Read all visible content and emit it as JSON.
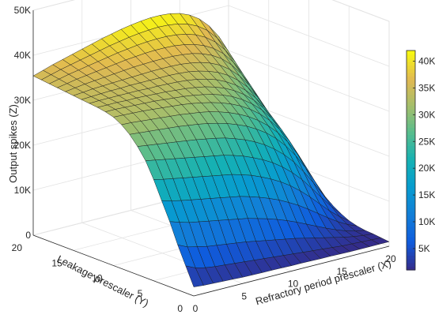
{
  "chart_data": {
    "type": "surface",
    "xlabel": "Refractory period prescaler (X)",
    "ylabel": "Leakage prescaler (Y)",
    "zlabel": "Output spikes (Z)",
    "x_ticks": [
      "0",
      "5",
      "10",
      "15",
      "20"
    ],
    "y_ticks": [
      "0",
      "5",
      "10",
      "15",
      "20"
    ],
    "z_ticks": [
      "0",
      "10K",
      "20K",
      "30K",
      "40K",
      "50K"
    ],
    "colorbar_ticks": [
      "5K",
      "10K",
      "15K",
      "20K",
      "25K",
      "30K",
      "35K",
      "40K"
    ],
    "xlim": [
      0,
      20
    ],
    "ylim": [
      0,
      20
    ],
    "zlim": [
      0,
      50000
    ],
    "clim": [
      1000,
      42000
    ],
    "colormap": "parula",
    "grid_x": [
      0,
      1,
      2,
      3,
      4,
      5,
      6,
      7,
      8,
      9,
      10,
      11,
      12,
      13,
      14,
      15,
      16,
      17,
      18,
      19,
      20
    ],
    "grid_y": [
      0,
      1,
      2,
      3,
      4,
      5,
      6,
      7,
      8,
      9,
      10,
      11,
      12,
      13,
      14,
      15,
      16,
      17,
      18,
      19,
      20
    ],
    "z_rows_by_y": [
      [
        2000,
        1800,
        1700,
        1600,
        1500,
        1400,
        1350,
        1300,
        1300,
        1250,
        1200,
        1200,
        1150,
        1100,
        1100,
        1050,
        1000,
        1000,
        1000,
        1000,
        1000
      ],
      [
        6000,
        5000,
        4500,
        4200,
        4000,
        3800,
        3600,
        3400,
        3200,
        3000,
        2800,
        2600,
        2400,
        2200,
        2000,
        1800,
        1600,
        1500,
        1400,
        1300,
        1200
      ],
      [
        10000,
        9000,
        8500,
        8000,
        7700,
        7400,
        7100,
        6800,
        6400,
        6000,
        5600,
        5200,
        4800,
        4300,
        3800,
        3300,
        2800,
        2300,
        1900,
        1600,
        1400
      ],
      [
        14500,
        13800,
        13200,
        12800,
        12400,
        12000,
        11600,
        11200,
        10800,
        10200,
        9600,
        8900,
        8100,
        7200,
        6200,
        5200,
        4200,
        3300,
        2500,
        1900,
        1500
      ],
      [
        18500,
        17900,
        17400,
        17000,
        16600,
        16200,
        15800,
        15400,
        15000,
        14400,
        13700,
        12900,
        12000,
        10900,
        9700,
        8300,
        6800,
        5300,
        3900,
        2700,
        1800
      ],
      [
        22500,
        22000,
        21600,
        21200,
        20800,
        20400,
        20000,
        19600,
        19200,
        18600,
        17900,
        17000,
        16000,
        14800,
        13400,
        11700,
        9800,
        7700,
        5600,
        3800,
        2300
      ],
      [
        26000,
        25600,
        25200,
        24800,
        24400,
        24000,
        23600,
        23200,
        22800,
        22200,
        21500,
        20600,
        19600,
        18400,
        16900,
        15100,
        13000,
        10500,
        7900,
        5400,
        3200
      ],
      [
        28500,
        28200,
        27900,
        27600,
        27300,
        27000,
        26700,
        26300,
        25900,
        25400,
        24700,
        23900,
        22900,
        21700,
        20200,
        18400,
        16200,
        13500,
        10500,
        7300,
        4300
      ],
      [
        30500,
        30300,
        30100,
        29900,
        29700,
        29500,
        29200,
        28900,
        28500,
        28000,
        27400,
        26600,
        25700,
        24500,
        23100,
        21300,
        19100,
        16400,
        13200,
        9500,
        5700
      ],
      [
        32000,
        31900,
        31700,
        31500,
        31300,
        31100,
        30900,
        30600,
        30300,
        29900,
        29300,
        28600,
        27700,
        26600,
        25200,
        23500,
        21400,
        18800,
        15600,
        11700,
        7300
      ],
      [
        33000,
        32900,
        32800,
        32700,
        32500,
        32300,
        32100,
        31900,
        31600,
        31200,
        30700,
        30100,
        29300,
        28300,
        27000,
        25400,
        23400,
        20900,
        17800,
        13900,
        9100
      ],
      [
        33500,
        33500,
        33400,
        33300,
        33200,
        33100,
        32900,
        32700,
        32500,
        32200,
        31800,
        31300,
        30600,
        29700,
        28500,
        27000,
        25100,
        22700,
        19700,
        15900,
        10900
      ],
      [
        33800,
        33800,
        33800,
        33700,
        33700,
        33600,
        33500,
        33400,
        33200,
        33000,
        32700,
        32300,
        31700,
        30900,
        29800,
        28400,
        26600,
        24300,
        21400,
        17700,
        12600
      ],
      [
        34000,
        34100,
        34100,
        34100,
        34100,
        34100,
        34000,
        34000,
        33900,
        33800,
        33600,
        33300,
        32800,
        32100,
        31100,
        29800,
        28100,
        25900,
        23100,
        19500,
        14400
      ],
      [
        34200,
        34300,
        34400,
        34500,
        34500,
        34600,
        34600,
        34600,
        34600,
        34600,
        34500,
        34300,
        33900,
        33300,
        32500,
        31300,
        29700,
        27600,
        24900,
        21400,
        16300
      ],
      [
        34400,
        34600,
        34800,
        34900,
        35000,
        35100,
        35200,
        35300,
        35400,
        35400,
        35400,
        35300,
        35000,
        34600,
        33900,
        32900,
        31400,
        29400,
        26800,
        23400,
        18300
      ],
      [
        34600,
        34900,
        35200,
        35400,
        35600,
        35800,
        36000,
        36200,
        36300,
        36400,
        36400,
        36400,
        36200,
        35900,
        35300,
        34400,
        33100,
        31200,
        28700,
        25400,
        20400
      ],
      [
        34800,
        35200,
        35600,
        35900,
        36200,
        36500,
        36800,
        37100,
        37300,
        37500,
        37600,
        37600,
        37500,
        37200,
        36700,
        35900,
        34700,
        33000,
        30600,
        27400,
        22500
      ],
      [
        35000,
        35500,
        36000,
        36400,
        36800,
        37200,
        37600,
        38000,
        38300,
        38600,
        38800,
        38900,
        38900,
        38700,
        38300,
        37600,
        36500,
        34900,
        32600,
        29500,
        24700
      ],
      [
        35200,
        35800,
        36400,
        36900,
        37400,
        37900,
        38400,
        38900,
        39300,
        39700,
        40000,
        40200,
        40300,
        40200,
        39900,
        39300,
        38300,
        36800,
        34600,
        31600,
        26900
      ],
      [
        35400,
        36100,
        36800,
        37400,
        38000,
        38600,
        39200,
        39800,
        40300,
        40800,
        41200,
        41500,
        41700,
        41700,
        41500,
        41000,
        40100,
        38700,
        36600,
        33700,
        29100
      ]
    ]
  }
}
